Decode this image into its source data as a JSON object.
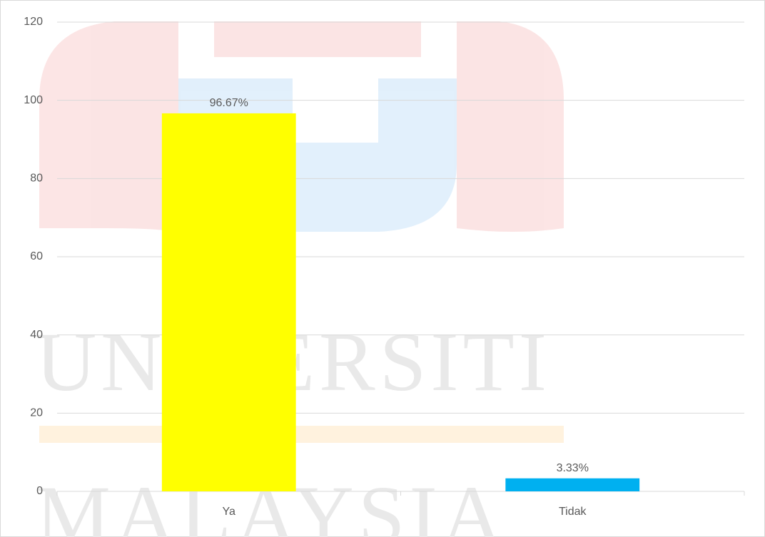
{
  "chart_data": {
    "type": "bar",
    "watermark": [
      "UNIVERSITI",
      "MALAYSIA"
    ],
    "categories": [
      "Ya",
      "Tidak"
    ],
    "values": [
      96.67,
      3.33
    ],
    "value_labels": [
      "96.67%",
      "3.33%"
    ],
    "colors": [
      "#ffff00",
      "#00b0f0"
    ],
    "ylim": [
      0,
      120
    ],
    "yticks": [
      0,
      20,
      40,
      60,
      80,
      100,
      120
    ],
    "grid": true
  }
}
